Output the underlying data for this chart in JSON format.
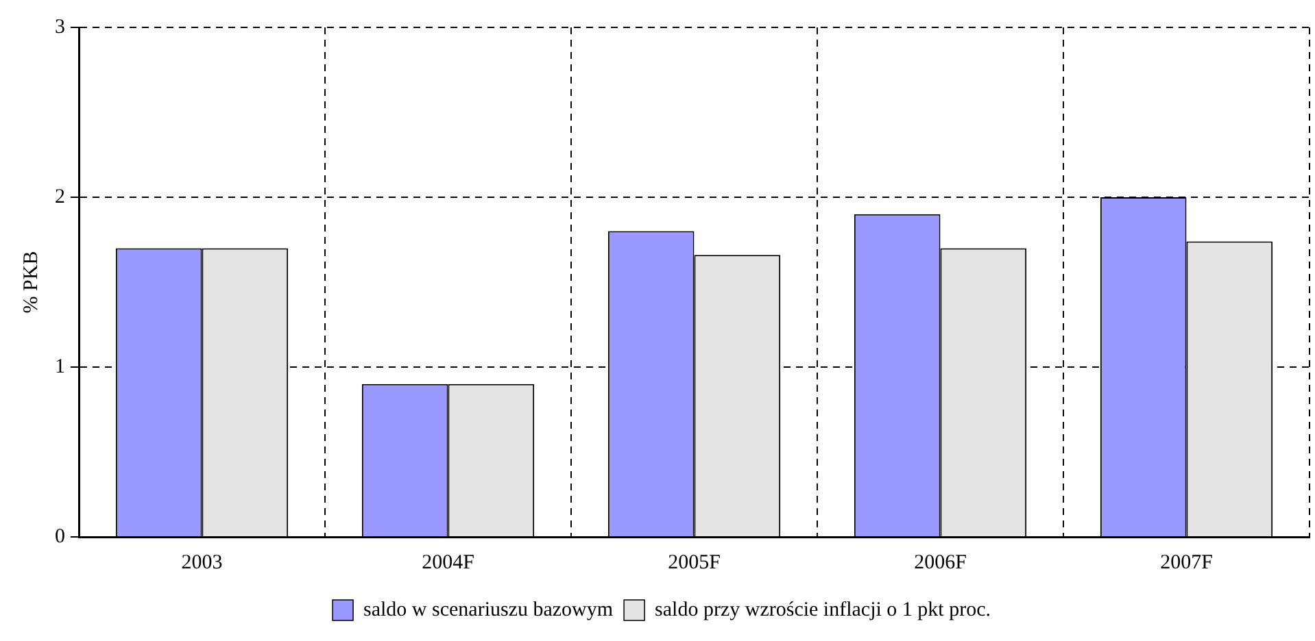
{
  "chart_data": {
    "type": "bar",
    "ylabel": "% PKB",
    "categories": [
      "2003",
      "2004F",
      "2005F",
      "2006F",
      "2007F"
    ],
    "series": [
      {
        "name": "saldo w scenariuszu bazowym",
        "color": "#9999ff",
        "values": [
          1.7,
          0.9,
          1.8,
          1.9,
          2.0
        ]
      },
      {
        "name": "saldo przy wzroście inflacji o 1 pkt proc.",
        "color": "#e4e4e4",
        "values": [
          1.7,
          0.9,
          1.66,
          1.7,
          1.74
        ]
      }
    ],
    "ylim": [
      0,
      3
    ],
    "yticks": [
      0,
      1,
      2,
      3
    ],
    "grid": true,
    "legend": "bottom"
  }
}
